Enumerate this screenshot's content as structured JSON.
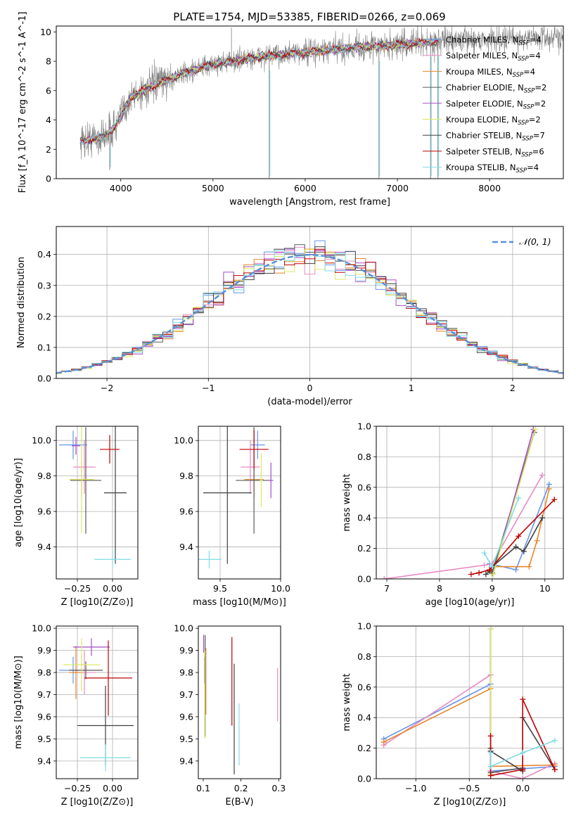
{
  "figure_title": "PLATE=1754, MJD=53385, FIBERID=0266, z=0.069",
  "colors": {
    "Chabrier MILES": "#6495ed",
    "Salpeter MILES": "#e78ac3",
    "Kroupa MILES": "#e6862b",
    "Chabrier ELODIE": "#5a5a5a",
    "Salpeter ELODIE": "#a64cc9",
    "Kroupa ELODIE": "#d9ea64",
    "Chabrier STELIB": "#404040",
    "Salpeter STELIB": "#c00000",
    "Kroupa STELIB": "#7fdce5",
    "data": "#808080",
    "normal": "#5b8fd6",
    "grid": "#b0b0b0"
  },
  "chart_data": [
    {
      "id": "spectrum",
      "type": "line",
      "xlabel": "wavelength [Angstrom, rest frame]",
      "ylabel": "Flux [f_λ 10^-17 erg cm^-2 s^-1 A^-1]",
      "xlim": [
        3300,
        8800
      ],
      "ylim": [
        0,
        10.4
      ],
      "xticks": [
        4000,
        5000,
        6000,
        7000,
        8000
      ],
      "yticks": [
        0,
        2,
        4,
        6,
        8,
        10
      ],
      "grid": false,
      "legend_position": "right",
      "legend": [
        {
          "name": "Chabrier MILES",
          "sub": "SSP",
          "n": 4
        },
        {
          "name": "Salpeter MILES",
          "sub": "SSP",
          "n": 4
        },
        {
          "name": "Kroupa MILES",
          "sub": "SSP",
          "n": 4
        },
        {
          "name": "Chabrier ELODIE",
          "sub": "SSP",
          "n": 2
        },
        {
          "name": "Salpeter ELODIE",
          "sub": "SSP",
          "n": 2
        },
        {
          "name": "Kroupa ELODIE",
          "sub": "SSP",
          "n": 2
        },
        {
          "name": "Chabrier STELIB",
          "sub": "SSP",
          "n": 7
        },
        {
          "name": "Salpeter STELIB",
          "sub": "SSP",
          "n": 6
        },
        {
          "name": "Kroupa STELIB",
          "sub": "SSP",
          "n": 4
        }
      ],
      "data_range": [
        3560,
        8800
      ],
      "continuum": [
        [
          3560,
          2.6
        ],
        [
          3800,
          2.8
        ],
        [
          3950,
          3.6
        ],
        [
          4100,
          5.5
        ],
        [
          4300,
          6.2
        ],
        [
          4600,
          7.0
        ],
        [
          5000,
          7.8
        ],
        [
          5500,
          8.3
        ],
        [
          6000,
          8.6
        ],
        [
          6500,
          8.9
        ],
        [
          7000,
          9.1
        ],
        [
          7500,
          9.4
        ],
        [
          8000,
          9.5
        ],
        [
          8500,
          9.6
        ],
        [
          8800,
          9.6
        ]
      ],
      "model_range": [
        3560,
        7450
      ],
      "emission_lines": [
        {
          "x": 5200,
          "top": 10.3
        },
        {
          "x": 6560,
          "top": 10.2
        }
      ],
      "absorption_lines": [
        {
          "x": 3880,
          "bottom": 0.6
        },
        {
          "x": 5610,
          "bottom": 0.0
        },
        {
          "x": 6800,
          "bottom": 0.0
        },
        {
          "x": 7360,
          "bottom": 0.0
        },
        {
          "x": 7440,
          "bottom": 0.0
        }
      ]
    },
    {
      "id": "residual-histogram",
      "type": "line",
      "xlabel": "(data-model)/error",
      "ylabel": "Normed distribution",
      "xlim": [
        -2.5,
        2.5
      ],
      "ylim": [
        0,
        0.49
      ],
      "xticks": [
        -2,
        -1,
        0,
        1,
        2
      ],
      "yticks": [
        0,
        0.1,
        0.2,
        0.3,
        0.4
      ],
      "grid": true,
      "legend_position": "top-right",
      "normal_label": "𝒩(0, 1)",
      "bin_width": 0.1
    },
    {
      "id": "age-vs-z",
      "type": "scatter",
      "xlabel": "Z [log10(Z/Z⊙)]",
      "ylabel": "age  [log10(age/yr)]",
      "xlim": [
        -0.4,
        0.18
      ],
      "ylim": [
        9.22,
        10.08
      ],
      "xticks": [
        -0.25,
        0.0
      ],
      "yticks": [
        9.4,
        9.6,
        9.8,
        10.0
      ],
      "grid": true,
      "points": [
        {
          "model": "Chabrier MILES",
          "x": -0.28,
          "y": 9.975,
          "x_err": 0.1,
          "y_err": 0.08
        },
        {
          "model": "Salpeter MILES",
          "x": -0.2,
          "y": 9.85,
          "x_err": 0.08,
          "y_err": 0.15
        },
        {
          "model": "Kroupa MILES",
          "x": -0.22,
          "y": 9.78,
          "x_err": 0.08,
          "y_err": 0.1
        },
        {
          "model": "Chabrier ELODIE",
          "x": -0.19,
          "y": 9.775,
          "x_err": 0.11,
          "y_err": 0.3
        },
        {
          "model": "Salpeter ELODIE",
          "x": -0.26,
          "y": 9.97,
          "x_err": 0.03,
          "y_err": 0.05
        },
        {
          "model": "Kroupa ELODIE",
          "x": -0.22,
          "y": 9.78,
          "x_err": 0.09,
          "y_err": 0.3
        },
        {
          "model": "Chabrier STELIB",
          "x": 0.02,
          "y": 9.705,
          "x_err": 0.08,
          "y_err": 0.4
        },
        {
          "model": "Salpeter STELIB",
          "x": -0.02,
          "y": 9.95,
          "x_err": 0.07,
          "y_err": 0.08
        },
        {
          "model": "Kroupa STELIB",
          "x": 0.0,
          "y": 9.33,
          "x_err": 0.13,
          "y_err": 0.05
        }
      ]
    },
    {
      "id": "age-vs-mass",
      "type": "scatter",
      "xlabel": "mass [log10(M/M⊙)]",
      "ylabel": "",
      "xlim": [
        9.32,
        10.0
      ],
      "ylim": [
        9.22,
        10.08
      ],
      "xticks": [
        9.5,
        10.0
      ],
      "yticks": [
        9.4,
        9.6,
        9.8,
        10.0
      ],
      "grid": true,
      "points": [
        {
          "model": "Chabrier MILES",
          "x": 9.81,
          "y": 9.975,
          "x_err": 0.06,
          "y_err": 0.08
        },
        {
          "model": "Salpeter MILES",
          "x": 9.75,
          "y": 9.85,
          "x_err": 0.08,
          "y_err": 0.15
        },
        {
          "model": "Kroupa MILES",
          "x": 9.78,
          "y": 9.78,
          "x_err": 0.08,
          "y_err": 0.1
        },
        {
          "model": "Chabrier ELODIE",
          "x": 9.78,
          "y": 9.775,
          "x_err": 0.15,
          "y_err": 0.3
        },
        {
          "model": "Salpeter ELODIE",
          "x": 9.92,
          "y": 9.775,
          "x_err": 0.02,
          "y_err": 0.1
        },
        {
          "model": "Kroupa ELODIE",
          "x": 9.84,
          "y": 9.775,
          "x_err": 0.01,
          "y_err": 0.15
        },
        {
          "model": "Chabrier STELIB",
          "x": 9.56,
          "y": 9.705,
          "x_err": 0.2,
          "y_err": 0.4
        },
        {
          "model": "Salpeter STELIB",
          "x": 9.78,
          "y": 9.95,
          "x_err": 0.12,
          "y_err": 0.11
        },
        {
          "model": "Kroupa STELIB",
          "x": 9.41,
          "y": 9.33,
          "x_err": 0.1,
          "y_err": 0.05
        }
      ]
    },
    {
      "id": "mass-weight-vs-age",
      "type": "line",
      "xlabel": "age  [log10(age/yr)]",
      "ylabel": "mass weight",
      "xlim": [
        6.8,
        10.35
      ],
      "ylim": [
        0,
        1.0
      ],
      "xticks": [
        7,
        8,
        9,
        10
      ],
      "yticks": [
        0.0,
        0.2,
        0.4,
        0.6,
        0.8,
        1.0
      ],
      "grid": true,
      "series": [
        {
          "model": "Chabrier MILES",
          "x": [
            8.95,
            9.45,
            10.08
          ],
          "y": [
            0.1,
            0.06,
            0.62
          ]
        },
        {
          "model": "Salpeter MILES",
          "x": [
            6.95,
            8.85,
            9.0,
            9.95
          ],
          "y": [
            0.0,
            0.09,
            0.1,
            0.68
          ]
        },
        {
          "model": "Kroupa MILES",
          "x": [
            8.98,
            9.05,
            9.7,
            9.85,
            10.08
          ],
          "y": [
            0.05,
            0.08,
            0.08,
            0.25,
            0.59
          ]
        },
        {
          "model": "Chabrier ELODIE",
          "x": [
            9.0,
            9.8
          ],
          "y": [
            0.04,
            0.96
          ]
        },
        {
          "model": "Salpeter ELODIE",
          "x": [
            9.02,
            9.78
          ],
          "y": [
            0.03,
            0.98
          ]
        },
        {
          "model": "Kroupa ELODIE",
          "x": [
            9.02,
            9.82
          ],
          "y": [
            0.03,
            0.98
          ]
        },
        {
          "model": "Chabrier STELIB",
          "x": [
            8.88,
            8.95,
            9.0,
            9.45,
            9.6,
            9.95
          ],
          "y": [
            0.03,
            0.05,
            0.08,
            0.21,
            0.18,
            0.4
          ]
        },
        {
          "model": "Salpeter STELIB",
          "x": [
            8.6,
            8.75,
            8.95,
            9.5,
            10.18
          ],
          "y": [
            0.03,
            0.04,
            0.06,
            0.28,
            0.52
          ]
        },
        {
          "model": "Kroupa STELIB",
          "x": [
            8.85,
            9.0,
            9.5
          ],
          "y": [
            0.17,
            0.08,
            0.53
          ]
        }
      ]
    },
    {
      "id": "mass-vs-z",
      "type": "scatter",
      "xlabel": "Z [log10(Z/Z⊙)]",
      "ylabel": "mass [log10(M/M⊙)]",
      "xlim": [
        -0.4,
        0.18
      ],
      "ylim": [
        9.32,
        10.01
      ],
      "xticks": [
        -0.25,
        0.0
      ],
      "yticks": [
        9.4,
        9.5,
        9.6,
        9.7,
        9.8,
        9.9,
        10.0
      ],
      "grid": true,
      "points": [
        {
          "model": "Chabrier MILES",
          "x": -0.28,
          "y": 9.81,
          "x_err": 0.1,
          "y_err": 0.06
        },
        {
          "model": "Salpeter MILES",
          "x": -0.2,
          "y": 9.8,
          "x_err": 0.08,
          "y_err": 0.1
        },
        {
          "model": "Kroupa MILES",
          "x": -0.26,
          "y": 9.8,
          "x_err": 0.05,
          "y_err": 0.12
        },
        {
          "model": "Chabrier ELODIE",
          "x": -0.19,
          "y": 9.81,
          "x_err": 0.12,
          "y_err": 0.04
        },
        {
          "model": "Salpeter ELODIE",
          "x": -0.15,
          "y": 9.915,
          "x_err": 0.13,
          "y_err": 0.04
        },
        {
          "model": "Kroupa ELODIE",
          "x": -0.22,
          "y": 9.835,
          "x_err": 0.13,
          "y_err": 0.12
        },
        {
          "model": "Chabrier STELIB",
          "x": -0.05,
          "y": 9.56,
          "x_err": 0.2,
          "y_err": 0.18
        },
        {
          "model": "Salpeter STELIB",
          "x": -0.03,
          "y": 9.775,
          "x_err": 0.17,
          "y_err": 0.17
        },
        {
          "model": "Kroupa STELIB",
          "x": -0.05,
          "y": 9.415,
          "x_err": 0.18,
          "y_err": 0.06
        }
      ]
    },
    {
      "id": "mass-vs-ebv",
      "type": "scatter",
      "xlabel": "E(B-V)",
      "ylabel": "",
      "xlim": [
        0.087,
        0.305
      ],
      "ylim": [
        9.32,
        10.01
      ],
      "xticks": [
        0.1,
        0.2,
        0.3
      ],
      "yticks": [
        9.4,
        9.5,
        9.6,
        9.7,
        9.8,
        9.9,
        10.0
      ],
      "grid": false,
      "points": [
        {
          "model": "Chabrier MILES",
          "x": 0.103,
          "y": 9.81,
          "x_err": 0,
          "y_err": 0.06
        },
        {
          "model": "Salpeter MILES",
          "x": 0.297,
          "y": 9.7,
          "x_err": 0,
          "y_err": 0.12
        },
        {
          "model": "Kroupa MILES",
          "x": 0.107,
          "y": 9.76,
          "x_err": 0,
          "y_err": 0.15
        },
        {
          "model": "Chabrier ELODIE",
          "x": 0.105,
          "y": 9.74,
          "x_err": 0,
          "y_err": 0.23
        },
        {
          "model": "Salpeter ELODIE",
          "x": 0.101,
          "y": 9.93,
          "x_err": 0,
          "y_err": 0.04
        },
        {
          "model": "Kroupa ELODIE",
          "x": 0.104,
          "y": 9.7,
          "x_err": 0,
          "y_err": 0.2
        },
        {
          "model": "Chabrier STELIB",
          "x": 0.182,
          "y": 9.59,
          "x_err": 0,
          "y_err": 0.25
        },
        {
          "model": "Salpeter STELIB",
          "x": 0.176,
          "y": 9.76,
          "x_err": 0,
          "y_err": 0.2
        },
        {
          "model": "Kroupa STELIB",
          "x": 0.195,
          "y": 9.52,
          "x_err": 0,
          "y_err": 0.14
        }
      ]
    },
    {
      "id": "mass-weight-vs-z",
      "type": "line",
      "xlabel": "Z [log10(Z/Z⊙)]",
      "ylabel": "mass weight",
      "xlim": [
        -1.37,
        0.38
      ],
      "ylim": [
        0,
        1.0
      ],
      "xticks": [
        -1.0,
        -0.5,
        0.0
      ],
      "yticks": [
        0.0,
        0.2,
        0.4,
        0.6,
        0.8,
        1.0
      ],
      "grid": true,
      "series": [
        {
          "model": "Chabrier MILES",
          "x": [
            -1.3,
            -0.3,
            -0.3,
            0.3
          ],
          "y": [
            0.26,
            0.62,
            0.05,
            0.08
          ]
        },
        {
          "model": "Salpeter MILES",
          "x": [
            -1.3,
            -0.3,
            -0.3,
            0.0,
            0.3
          ],
          "y": [
            0.22,
            0.68,
            0.05,
            0.0,
            0.1
          ]
        },
        {
          "model": "Kroupa MILES",
          "x": [
            -1.3,
            -0.3,
            -0.3,
            0.3
          ],
          "y": [
            0.24,
            0.59,
            0.08,
            0.09
          ]
        },
        {
          "model": "Chabrier ELODIE",
          "x": [
            -0.3,
            -0.3,
            0.0
          ],
          "y": [
            0.98,
            0.04,
            0.07
          ]
        },
        {
          "model": "Salpeter ELODIE",
          "x": [
            -0.3,
            -0.3
          ],
          "y": [
            0.98,
            0.03
          ]
        },
        {
          "model": "Kroupa ELODIE",
          "x": [
            -0.3,
            -0.3
          ],
          "y": [
            0.98,
            0.03
          ]
        },
        {
          "model": "Chabrier STELIB",
          "x": [
            -0.3,
            -0.3,
            0.0,
            0.0,
            0.3
          ],
          "y": [
            0.2,
            0.18,
            0.05,
            0.4,
            0.06
          ]
        },
        {
          "model": "Salpeter STELIB",
          "x": [
            -0.3,
            -0.3,
            0.0,
            0.0,
            0.3
          ],
          "y": [
            0.28,
            0.02,
            0.06,
            0.52,
            0.06
          ]
        },
        {
          "model": "Kroupa STELIB",
          "x": [
            -0.3,
            -0.3,
            0.0,
            0.3
          ],
          "y": [
            0.17,
            0.08,
            0.17,
            0.25
          ]
        }
      ]
    }
  ]
}
